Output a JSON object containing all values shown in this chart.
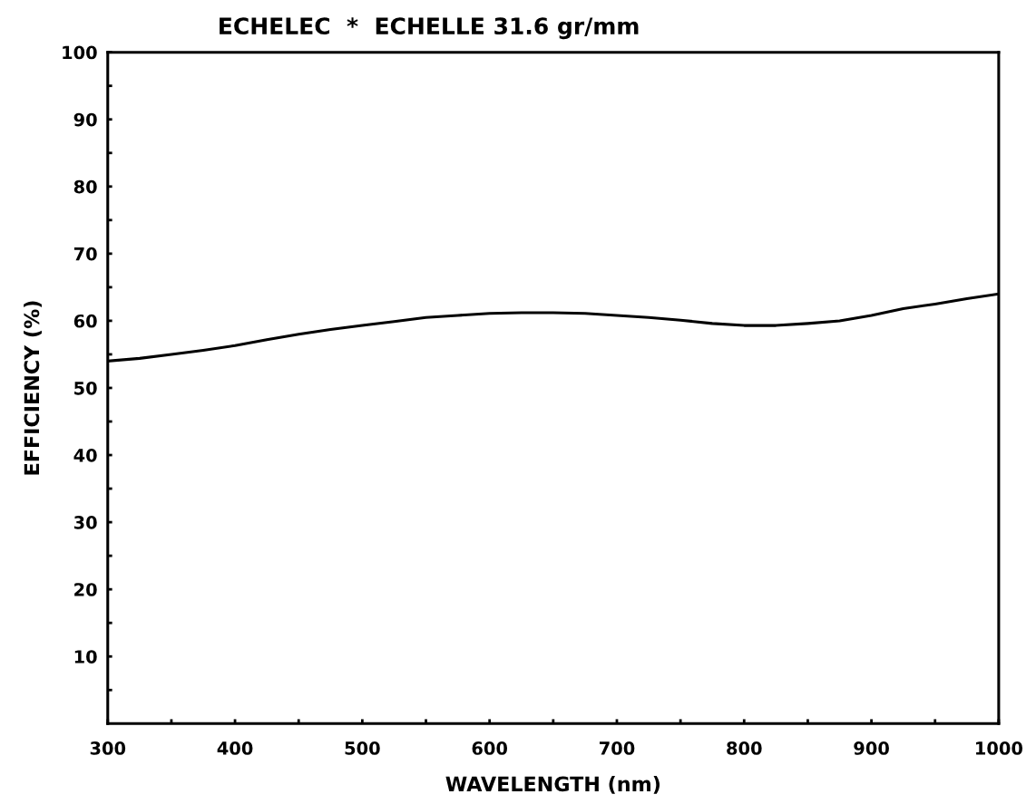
{
  "chart_data": {
    "type": "line",
    "title": "ECHELEC  *  ECHELLE 31.6 gr/mm",
    "xlabel": "WAVELENGTH (nm)",
    "ylabel": "EFFICIENCY (%)",
    "x": [
      300,
      325,
      350,
      375,
      400,
      425,
      450,
      475,
      500,
      525,
      550,
      575,
      600,
      625,
      650,
      675,
      700,
      725,
      750,
      775,
      800,
      825,
      850,
      875,
      900,
      925,
      950,
      975,
      1000
    ],
    "series": [
      {
        "color": "#000000",
        "values": [
          54.0,
          54.4,
          55.0,
          55.6,
          56.3,
          57.2,
          58.0,
          58.7,
          59.3,
          59.9,
          60.5,
          60.8,
          61.1,
          61.2,
          61.2,
          61.1,
          60.8,
          60.5,
          60.1,
          59.6,
          59.3,
          59.3,
          59.6,
          60.0,
          60.8,
          61.8,
          62.5,
          63.3,
          64.0
        ]
      }
    ],
    "xlim": [
      300,
      1000
    ],
    "ylim": [
      0,
      100
    ],
    "xticks": [
      300,
      {
        "value": 350,
        "label": null
      },
      400,
      {
        "value": 450,
        "label": null
      },
      500,
      {
        "value": 550,
        "label": null
      },
      600,
      {
        "value": 650,
        "label": null
      },
      700,
      {
        "value": 750,
        "label": null
      },
      800,
      {
        "value": 850,
        "label": null
      },
      900,
      {
        "value": 950,
        "label": null
      },
      1000
    ],
    "yticks": [
      {
        "value": 5,
        "label": null
      },
      10,
      {
        "value": 15,
        "label": null
      },
      20,
      {
        "value": 25,
        "label": null
      },
      30,
      {
        "value": 35,
        "label": null
      },
      40,
      {
        "value": 45,
        "label": null
      },
      50,
      {
        "value": 55,
        "label": null
      },
      60,
      {
        "value": 65,
        "label": null
      },
      70,
      {
        "value": 75,
        "label": null
      },
      80,
      {
        "value": 85,
        "label": null
      },
      90,
      {
        "value": 95,
        "label": null
      },
      100
    ],
    "marker": "none",
    "line_style": "solid"
  }
}
